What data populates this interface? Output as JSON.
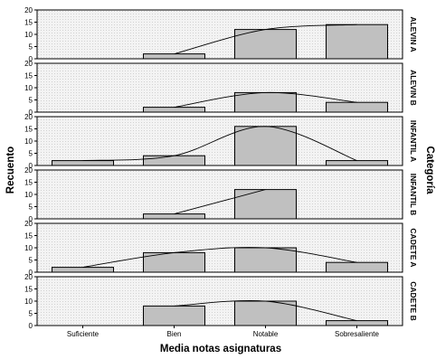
{
  "chart_data": {
    "type": "bar",
    "xlabel": "Media notas asignaturas",
    "ylabel": "Recuento",
    "facet_title": "Categoría",
    "categories": [
      "Suficiente",
      "Bien",
      "Notable",
      "Sobresaliente"
    ],
    "yticks": [
      0,
      5,
      10,
      15,
      20
    ],
    "ylim": [
      0,
      20
    ],
    "overlay": "normal curve",
    "bar_color": "#c0c0c0",
    "panels": [
      {
        "name": "ALEVIN A",
        "values": [
          0,
          2,
          12,
          14
        ],
        "curve": [
          null,
          2,
          12,
          14
        ]
      },
      {
        "name": "ALEVIN B",
        "values": [
          0,
          2,
          8,
          4
        ],
        "curve": [
          null,
          2,
          8,
          4
        ]
      },
      {
        "name": "INFANTIL A",
        "values": [
          2,
          4,
          16,
          2
        ],
        "curve": [
          2,
          4,
          16,
          2
        ]
      },
      {
        "name": "INFANTIL B",
        "values": [
          0,
          2,
          12,
          0
        ],
        "curve": [
          null,
          2,
          12,
          null
        ]
      },
      {
        "name": "CADETE A",
        "values": [
          2,
          8,
          10,
          4
        ],
        "curve": [
          2,
          8,
          10,
          4
        ]
      },
      {
        "name": "CADETE B",
        "values": [
          0,
          8,
          10,
          2
        ],
        "curve": [
          null,
          8,
          10,
          2
        ]
      }
    ]
  }
}
